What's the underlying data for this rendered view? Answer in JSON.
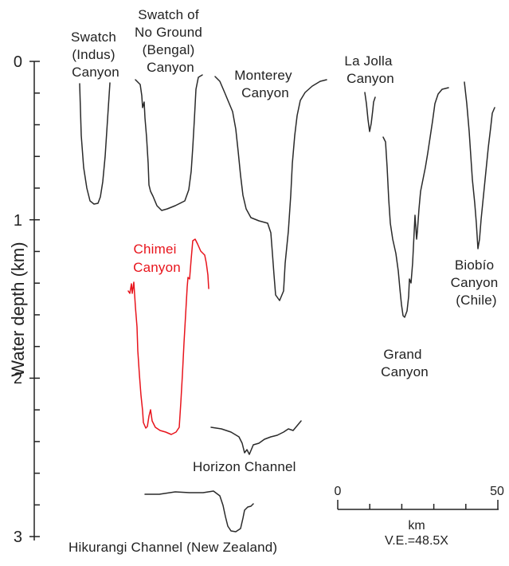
{
  "axis": {
    "title": "Water depth (km)",
    "ticks": [
      "0",
      "1",
      "2",
      "3"
    ],
    "range_km": [
      0,
      3.05
    ]
  },
  "canyons": [
    {
      "id": "swatch-indus",
      "lines": [
        "Swatch",
        "(Indus)",
        "Canyon"
      ],
      "max_depth_km": 0.9
    },
    {
      "id": "swatch-no-ground",
      "lines": [
        "Swatch of",
        "No Ground",
        "(Bengal)",
        "Canyon"
      ],
      "max_depth_km": 0.95
    },
    {
      "id": "monterey",
      "lines": [
        "Monterey",
        "Canyon"
      ],
      "max_depth_km": 1.5
    },
    {
      "id": "la-jolla",
      "lines": [
        "La Jolla",
        "Canyon"
      ],
      "max_depth_km": 0.34
    },
    {
      "id": "grand",
      "lines": [
        "Grand",
        "Canyon"
      ],
      "max_depth_km": 1.74
    },
    {
      "id": "biobio",
      "lines": [
        "Biobío",
        "Canyon",
        "(Chile)"
      ],
      "max_depth_km": 1.22
    },
    {
      "id": "chimei",
      "lines": [
        "Chimei",
        "Canyon"
      ],
      "max_depth_km": 2.38,
      "highlight": true
    },
    {
      "id": "horizon",
      "lines": [
        "Horizon Channel"
      ],
      "max_depth_km": 2.5
    },
    {
      "id": "hikurangi",
      "lines": [
        "Hikurangi Channel (New Zealand)"
      ],
      "max_depth_km": 2.97
    }
  ],
  "scale_bar": {
    "start": "0",
    "end": "50",
    "unit": "km",
    "ve": "V.E.=48.5X"
  },
  "colors": {
    "highlight": "#e8141c",
    "line": "#2a2a2a",
    "text": "#222222"
  }
}
